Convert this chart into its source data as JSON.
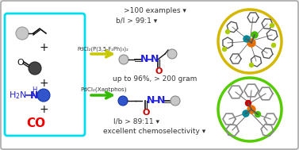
{
  "fig_width": 3.77,
  "fig_height": 1.89,
  "dpi": 100,
  "bg_outer": "#e8e8e8",
  "bg_inner": "#ffffff",
  "border_color": "#aaaaaa",
  "cyan_box_color": "#00ddee",
  "yellow_circle_color": "#d4b800",
  "green_circle_color": "#55cc00",
  "text_top": ">100 examples ▾",
  "text_bl": "b/l > 99:1 ▾",
  "text_mid": "up to 96%, > 200 gram",
  "text_lb": "l/b > 89:11 ▾",
  "text_bot": "excellent chemoselectivity ▾",
  "cat1": "PdCl₂(P(3,5-F₂Ph)₃)₂",
  "cat2": "PdCl₂(Xantphos)",
  "co_color": "#ee0000",
  "blue_color": "#2222dd",
  "black": "#111111",
  "dark_gray": "#333333",
  "mid_gray": "#888888",
  "light_gray": "#c8c8c8",
  "arrow1_color": "#c8c800",
  "arrow2_color": "#33bb00",
  "orange": "#e87000",
  "teal": "#008899",
  "green_atom": "#44aa00",
  "yellow_atom": "#bbbb00",
  "red_atom": "#cc0000"
}
